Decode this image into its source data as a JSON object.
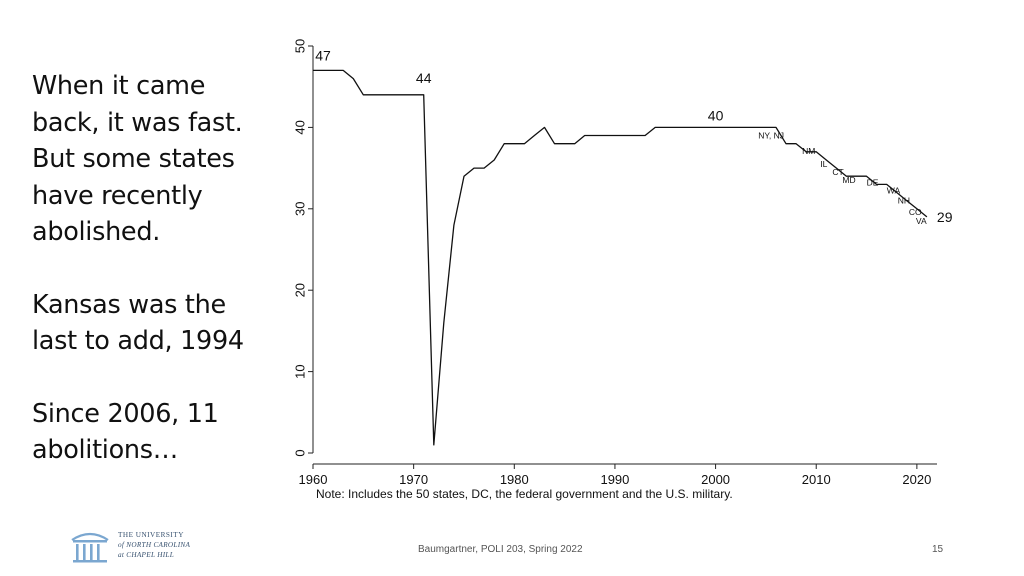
{
  "slide": {
    "paragraphs": [
      [
        "When it came",
        "back, it was fast.",
        "But some states",
        "have recently",
        "abolished."
      ],
      [
        "Kansas was the",
        "last to add, 1994"
      ],
      [
        "Since 2006, 11",
        "abolitions…"
      ]
    ],
    "footer": "Baumgartner, POLI 203, Spring 2022",
    "page_number": "15",
    "logo": {
      "line1": "THE UNIVERSITY",
      "line2": "of NORTH CAROLINA",
      "line3": "at CHAPEL HILL"
    }
  },
  "chart_data": {
    "type": "line",
    "title": "",
    "xlabel": "",
    "ylabel": "",
    "xlim": [
      1960,
      2022
    ],
    "ylim": [
      0,
      50
    ],
    "x_ticks": [
      1960,
      1970,
      1980,
      1990,
      2000,
      2010,
      2020
    ],
    "y_ticks": [
      0,
      10,
      20,
      30,
      40,
      50
    ],
    "grid": false,
    "note": "Note: Includes the 50 states, DC, the federal government and the U.S. military.",
    "series": [
      {
        "x": [
          1960,
          1961,
          1962,
          1963,
          1964,
          1965,
          1966,
          1967,
          1968,
          1969,
          1970,
          1971,
          1972,
          1973,
          1974,
          1975,
          1976,
          1977,
          1978,
          1979,
          1980,
          1981,
          1982,
          1983,
          1984,
          1985,
          1986,
          1987,
          1988,
          1989,
          1990,
          1991,
          1992,
          1993,
          1994,
          1995,
          1996,
          1997,
          1998,
          1999,
          2000,
          2001,
          2002,
          2003,
          2004,
          2005,
          2006,
          2007,
          2008,
          2009,
          2010,
          2011,
          2012,
          2013,
          2014,
          2015,
          2016,
          2017,
          2018,
          2019,
          2020,
          2021
        ],
        "y": [
          47,
          47,
          47,
          47,
          46,
          44,
          44,
          44,
          44,
          44,
          44,
          44,
          1,
          16,
          28,
          34,
          35,
          35,
          36,
          38,
          38,
          38,
          39,
          40,
          38,
          38,
          38,
          39,
          39,
          39,
          39,
          39,
          39,
          39,
          40,
          40,
          40,
          40,
          40,
          40,
          40,
          40,
          40,
          40,
          40,
          40,
          40,
          38,
          38,
          37,
          37,
          36,
          35,
          34,
          34,
          34,
          33,
          33,
          32,
          31,
          30,
          29
        ]
      }
    ],
    "value_labels": [
      {
        "text": "47",
        "x": 1960,
        "y": 47
      },
      {
        "text": "44",
        "x": 1971,
        "y": 44
      },
      {
        "text": "40",
        "x": 2000,
        "y": 40
      },
      {
        "text": "29",
        "x": 2021,
        "y": 29
      }
    ],
    "state_annotations": [
      {
        "text": "NY, NJ",
        "x": 2007,
        "y": 38
      },
      {
        "text": "NM",
        "x": 2009,
        "y": 37
      },
      {
        "text": "IL",
        "x": 2011,
        "y": 36
      },
      {
        "text": "CT",
        "x": 2012,
        "y": 35
      },
      {
        "text": "MD",
        "x": 2013,
        "y": 34
      },
      {
        "text": "DE",
        "x": 2016,
        "y": 33
      },
      {
        "text": "WA",
        "x": 2018,
        "y": 32
      },
      {
        "text": "NH",
        "x": 2019,
        "y": 31
      },
      {
        "text": "CO",
        "x": 2020,
        "y": 30
      },
      {
        "text": "VA",
        "x": 2021,
        "y": 29
      }
    ]
  }
}
